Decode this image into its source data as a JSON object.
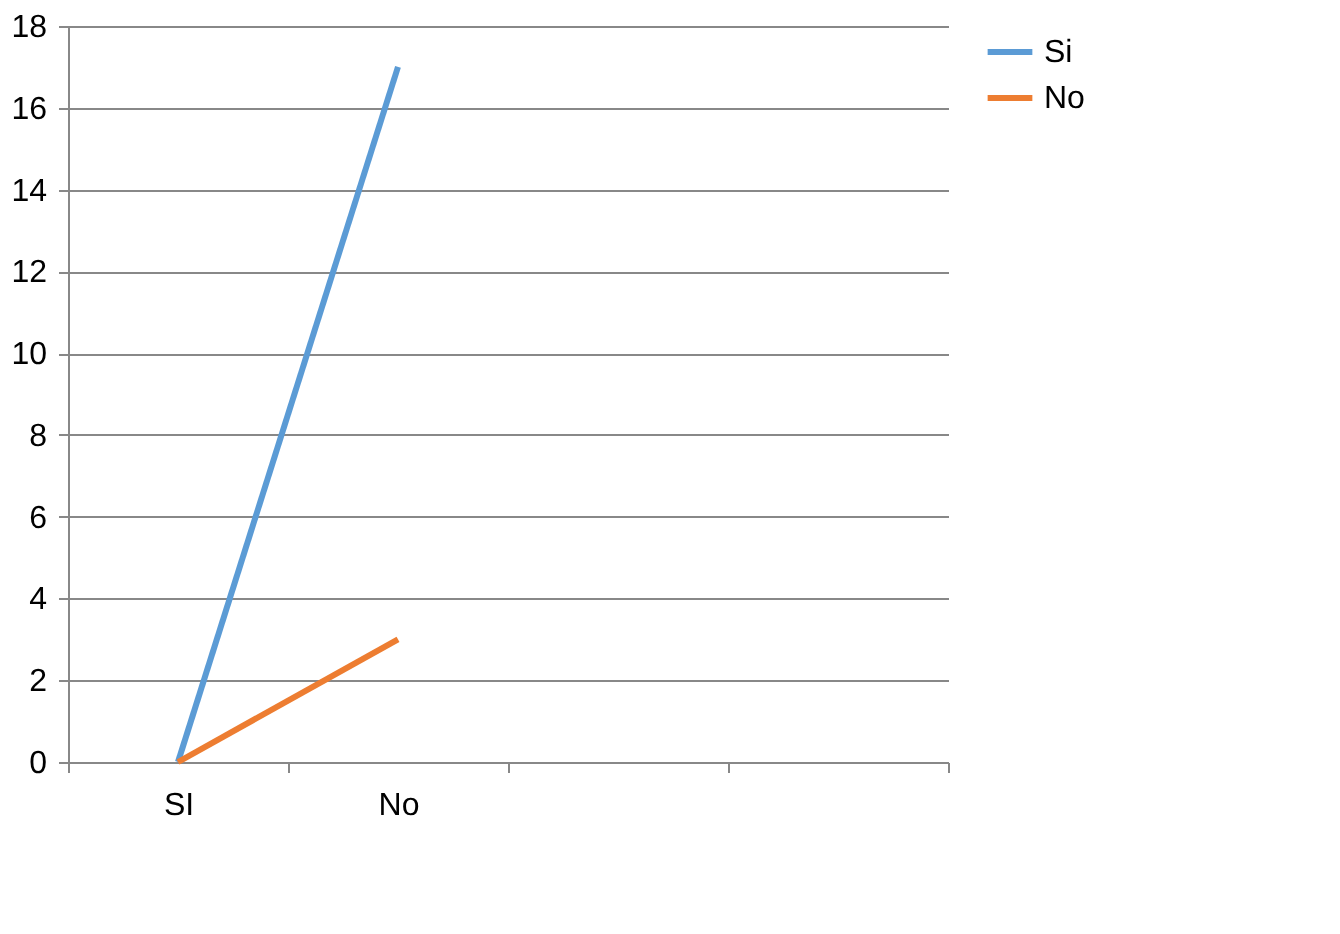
{
  "chart_data": {
    "type": "line",
    "categories": [
      "SI",
      "No",
      null,
      null
    ],
    "series": [
      {
        "name": "Si",
        "color": "#5b9bd5",
        "values": [
          0,
          17,
          null,
          null
        ]
      },
      {
        "name": "No",
        "color": "#ed7d31",
        "values": [
          0,
          3,
          null,
          null
        ]
      }
    ],
    "ylim": [
      0,
      18
    ],
    "yticks": [
      0,
      2,
      4,
      6,
      8,
      10,
      12,
      14,
      16,
      18
    ],
    "grid": "y",
    "legend": "right",
    "marker": "none",
    "line_style": "solid"
  }
}
